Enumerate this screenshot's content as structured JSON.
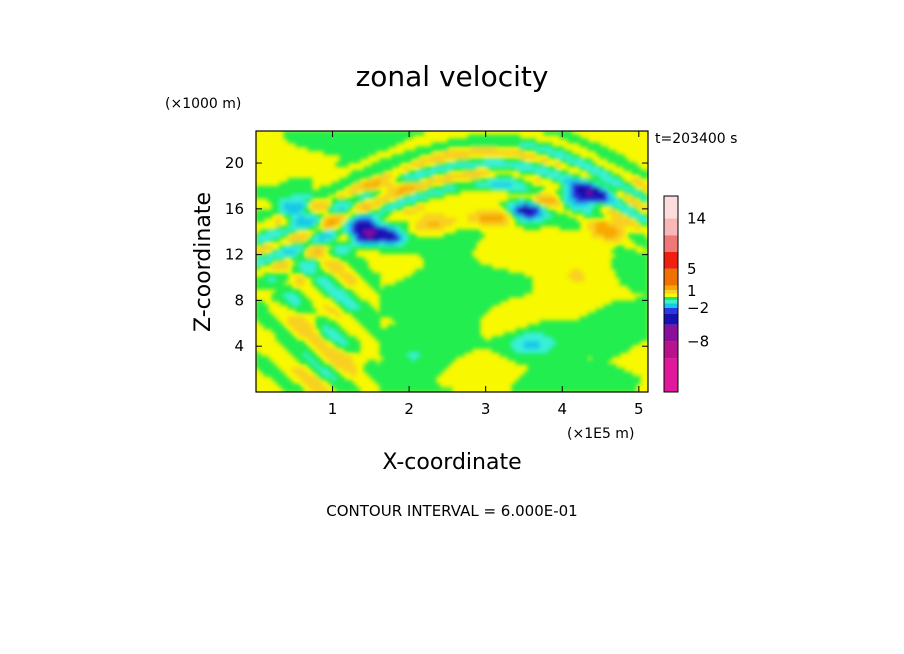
{
  "chart_data": {
    "type": "heatmap",
    "title": "zonal velocity",
    "xlabel": "X-coordinate",
    "ylabel": "Z-coordinate",
    "x_unit_label": "(×1E5 m)",
    "y_unit_label": "(×1000 m)",
    "time_label": "t=203400 s",
    "contour_note": "CONTOUR INTERVAL = 6.000E-01",
    "xlim": [
      0,
      5.12
    ],
    "ylim": [
      0,
      22.8
    ],
    "x_ticks": [
      1,
      2,
      3,
      4,
      5
    ],
    "y_ticks": [
      4,
      8,
      12,
      16,
      20
    ],
    "colorbar": {
      "tick_labels": [
        "14",
        "5",
        "1",
        "−2",
        "−8"
      ],
      "tick_values": [
        14,
        5,
        1,
        -2,
        -8
      ],
      "range": [
        -17,
        18
      ],
      "levels": [
        {
          "from": -17,
          "to": -11,
          "color": "#e0189c"
        },
        {
          "from": -11,
          "to": -8,
          "color": "#b8128c"
        },
        {
          "from": -8,
          "to": -5,
          "color": "#8c0f9c"
        },
        {
          "from": -5,
          "to": -3,
          "color": "#1a0fb0"
        },
        {
          "from": -3,
          "to": -2,
          "color": "#2a38e0"
        },
        {
          "from": -2,
          "to": -1.2,
          "color": "#18c8e8"
        },
        {
          "from": -1.2,
          "to": -0.6,
          "color": "#38f0d8"
        },
        {
          "from": -0.6,
          "to": 0,
          "color": "#20ee50"
        },
        {
          "from": 0,
          "to": 0.6,
          "color": "#f8f800"
        },
        {
          "from": 0.6,
          "to": 1.2,
          "color": "#f8d020"
        },
        {
          "from": 1.2,
          "to": 2,
          "color": "#f8a800"
        },
        {
          "from": 2,
          "to": 5,
          "color": "#f07000"
        },
        {
          "from": 5,
          "to": 8,
          "color": "#f02010"
        },
        {
          "from": 8,
          "to": 11,
          "color": "#f07878"
        },
        {
          "from": 11,
          "to": 14,
          "color": "#f8b8b8"
        },
        {
          "from": 14,
          "to": 18,
          "color": "#fcdcdc"
        }
      ]
    },
    "features": [
      {
        "x": 1.45,
        "z": 14.0,
        "rx": 0.22,
        "rz": 1.0,
        "value": -5.5,
        "angle": 0
      },
      {
        "x": 1.78,
        "z": 13.6,
        "rx": 0.14,
        "rz": 0.6,
        "value": -3.5,
        "angle": 0
      },
      {
        "x": 4.33,
        "z": 17.4,
        "rx": 0.28,
        "rz": 0.9,
        "value": -4.5,
        "angle": -30
      },
      {
        "x": 3.55,
        "z": 15.9,
        "rx": 0.22,
        "rz": 0.9,
        "value": -3.8,
        "angle": -10
      },
      {
        "x": 0.55,
        "z": 16.0,
        "rx": 0.2,
        "rz": 1.8,
        "value": -1.4,
        "angle": 25
      },
      {
        "x": 3.25,
        "z": 18.4,
        "rx": 0.25,
        "rz": 0.7,
        "value": -1.2,
        "angle": 30
      },
      {
        "x": 3.8,
        "z": 16.8,
        "rx": 0.22,
        "rz": 0.6,
        "value": 2.2,
        "angle": -25
      },
      {
        "x": 4.6,
        "z": 14.3,
        "rx": 0.25,
        "rz": 1.0,
        "value": 2.0,
        "angle": -20
      },
      {
        "x": 1.7,
        "z": 18.0,
        "rx": 0.35,
        "rz": 0.6,
        "value": 1.8,
        "angle": 20
      },
      {
        "x": 2.3,
        "z": 14.8,
        "rx": 0.3,
        "rz": 1.0,
        "value": 1.4,
        "angle": -30
      },
      {
        "x": 3.1,
        "z": 15.2,
        "rx": 0.3,
        "rz": 0.7,
        "value": 1.6,
        "angle": -10
      },
      {
        "x": 2.4,
        "z": 7.5,
        "rx": 0.6,
        "rz": 2.5,
        "value": -0.6,
        "angle": 15
      },
      {
        "x": 2.1,
        "z": 3.0,
        "rx": 0.45,
        "rz": 1.6,
        "value": -0.6,
        "angle": -20
      },
      {
        "x": 3.6,
        "z": 4.2,
        "rx": 0.3,
        "rz": 1.0,
        "value": -1.3,
        "angle": 0
      },
      {
        "x": 4.7,
        "z": 5.5,
        "rx": 0.35,
        "rz": 2.5,
        "value": -0.5,
        "angle": 10
      },
      {
        "x": 3.3,
        "z": 6.0,
        "rx": 0.4,
        "rz": 2.0,
        "value": 0.5,
        "angle": 0
      },
      {
        "x": 3.3,
        "z": 12.5,
        "rx": 0.35,
        "rz": 1.5,
        "value": 0.4,
        "angle": 0
      },
      {
        "x": 1.3,
        "z": 3.0,
        "rx": 0.4,
        "rz": 1.0,
        "value": 0.9,
        "angle": 0
      },
      {
        "x": 0.7,
        "z": 6.5,
        "rx": 0.2,
        "rz": 1.0,
        "value": 1.0,
        "angle": 0
      },
      {
        "x": 4.2,
        "z": 10.2,
        "rx": 0.4,
        "rz": 1.5,
        "value": 0.6,
        "angle": 0
      }
    ]
  }
}
